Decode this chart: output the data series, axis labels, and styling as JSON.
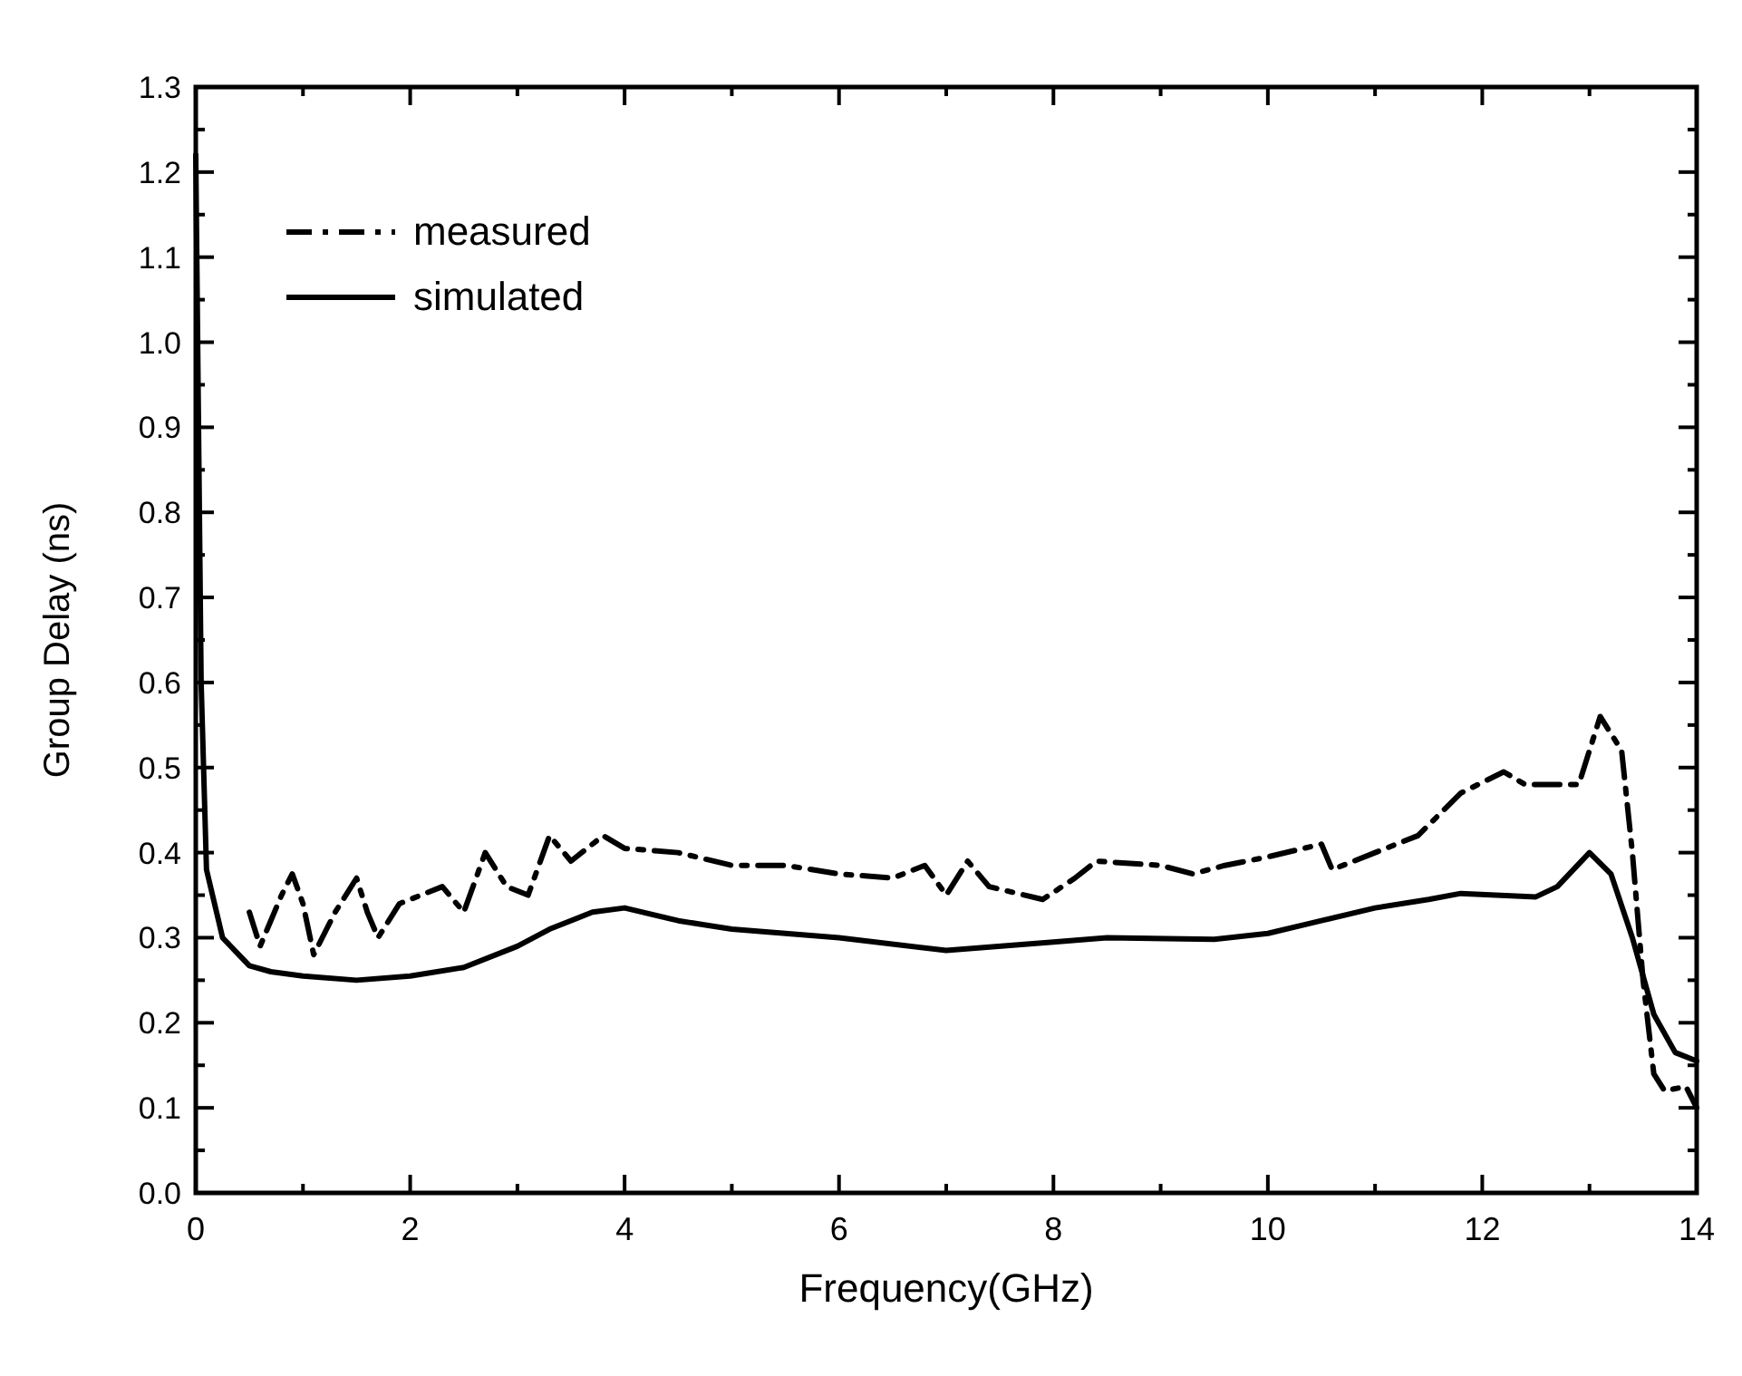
{
  "chart_data": {
    "type": "line",
    "xlabel": "Frequency(GHz)",
    "ylabel": "Group Delay (ns)",
    "xlim": [
      0,
      14
    ],
    "ylim": [
      0,
      1.3
    ],
    "xticks": [
      0,
      2,
      4,
      6,
      8,
      10,
      12,
      14
    ],
    "yticks": [
      {
        "value": 0,
        "label": "0.0"
      },
      0.1,
      0.2,
      0.3,
      0.4,
      0.5,
      0.6,
      0.7,
      0.8,
      0.9,
      {
        "value": 1,
        "label": "1.0"
      },
      1.1,
      1.2,
      1.3
    ],
    "grid": false,
    "legend": "top left",
    "series": [
      {
        "name": "measured",
        "color": "#000000",
        "line_style": "dashed",
        "x": [
          0.5,
          0.6,
          0.8,
          0.9,
          1.0,
          1.1,
          1.3,
          1.5,
          1.6,
          1.7,
          1.9,
          2.1,
          2.3,
          2.5,
          2.7,
          2.9,
          3.1,
          3.3,
          3.5,
          3.8,
          4.0,
          4.5,
          5,
          5.5,
          6,
          6.5,
          6.8,
          7.0,
          7.2,
          7.4,
          7.9,
          8.2,
          8.4,
          9,
          9.3,
          9.6,
          10,
          10.5,
          10.6,
          11,
          11.4,
          11.8,
          12.2,
          12.4,
          12.7,
          12.9,
          13.1,
          13.3,
          13.4,
          13.5,
          13.6,
          13.7,
          13.9,
          14
        ],
        "values": [
          0.33,
          0.29,
          0.35,
          0.375,
          0.34,
          0.28,
          0.33,
          0.37,
          0.33,
          0.3,
          0.34,
          0.35,
          0.36,
          0.33,
          0.4,
          0.36,
          0.35,
          0.42,
          0.39,
          0.42,
          0.405,
          0.4,
          0.385,
          0.385,
          0.375,
          0.37,
          0.385,
          0.35,
          0.39,
          0.36,
          0.345,
          0.37,
          0.39,
          0.385,
          0.375,
          0.385,
          0.395,
          0.41,
          0.38,
          0.4,
          0.42,
          0.47,
          0.495,
          0.48,
          0.48,
          0.48,
          0.56,
          0.52,
          0.4,
          0.25,
          0.14,
          0.12,
          0.125,
          0.1
        ]
      },
      {
        "name": "simulated",
        "color": "#000000",
        "line_style": "solid",
        "x": [
          0,
          0.05,
          0.1,
          0.25,
          0.5,
          0.7,
          1,
          1.5,
          2,
          2.5,
          3,
          3.3,
          3.7,
          4,
          4.5,
          5,
          6,
          7,
          8,
          8.5,
          9.5,
          10,
          10.5,
          11,
          11.5,
          11.8,
          12.5,
          12.7,
          13,
          13.2,
          13.4,
          13.6,
          13.8,
          14
        ],
        "values": [
          1.22,
          0.6,
          0.38,
          0.3,
          0.267,
          0.26,
          0.255,
          0.25,
          0.255,
          0.265,
          0.29,
          0.31,
          0.33,
          0.335,
          0.32,
          0.31,
          0.3,
          0.285,
          0.295,
          0.3,
          0.298,
          0.305,
          0.32,
          0.335,
          0.345,
          0.352,
          0.348,
          0.36,
          0.4,
          0.375,
          0.3,
          0.21,
          0.165,
          0.155
        ]
      }
    ]
  }
}
